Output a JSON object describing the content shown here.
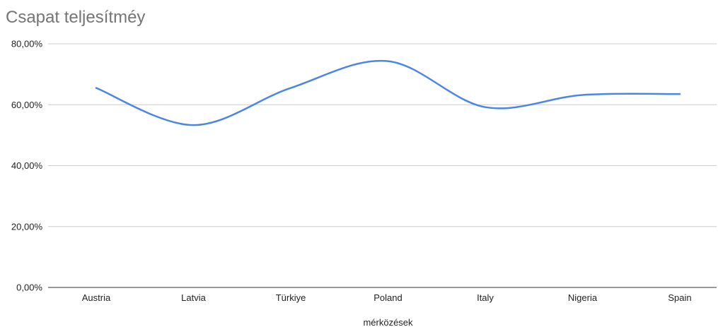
{
  "chart_data": {
    "type": "line",
    "title": "Csapat teljesítméy",
    "xlabel": "mérközések",
    "ylabel": "",
    "categories": [
      "Austria",
      "Latvia",
      "Türkiye",
      "Poland",
      "Italy",
      "Nigeria",
      "Spain"
    ],
    "series": [
      {
        "values": [
          65.5,
          53.3,
          65.5,
          74.3,
          59.2,
          63.2,
          63.5
        ],
        "color": "#4a86e8"
      }
    ],
    "ylim": [
      0,
      80
    ],
    "yticks": [
      0,
      20,
      40,
      60,
      80
    ],
    "ytick_labels": [
      "0,00%",
      "20,00%",
      "40,00%",
      "60,00%",
      "80,00%"
    ],
    "grid": true,
    "legend": "none",
    "smooth": true
  }
}
